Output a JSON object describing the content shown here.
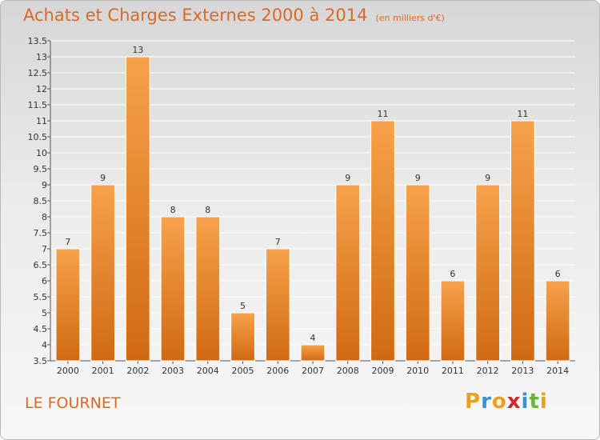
{
  "header": {
    "title": "Achats et Charges Externes 2000 à 2014",
    "unit": "(en milliers d'€)"
  },
  "footer": {
    "commune": "LE FOURNET",
    "brand": "Proxiti",
    "brand_colors": [
      "#e8a020",
      "#3b8fd6",
      "#e8a020",
      "#d7262a",
      "#3b8fd6",
      "#6bb536",
      "#e8a020"
    ]
  },
  "colors": {
    "title": "#d9692a",
    "bar_top": "#f7a24a",
    "bar_bottom": "#d06a12",
    "bar_stroke": "#ffffff"
  },
  "chart_data": {
    "type": "bar",
    "categories": [
      "2000",
      "2001",
      "2002",
      "2003",
      "2004",
      "2005",
      "2006",
      "2007",
      "2008",
      "2009",
      "2010",
      "2011",
      "2012",
      "2013",
      "2014"
    ],
    "values": [
      7,
      9,
      13,
      8,
      8,
      5,
      7,
      4,
      9,
      11,
      9,
      6,
      9,
      11,
      6
    ],
    "ylim": [
      3.5,
      13.5
    ],
    "yticks": [
      3.5,
      4,
      4.5,
      5,
      5.5,
      6,
      6.5,
      7,
      7.5,
      8,
      8.5,
      9,
      9.5,
      10,
      10.5,
      11,
      11.5,
      12,
      12.5,
      13,
      13.5
    ],
    "ytick_labels": [
      "3.5",
      "4",
      "4.5",
      "5",
      "5.5",
      "6",
      "6.5",
      "7",
      "7.5",
      "8",
      "8.5",
      "9",
      "9.5",
      "10",
      "10.5",
      "11",
      "11.5",
      "12",
      "12.5",
      "13",
      "13.5"
    ],
    "grid": true
  }
}
